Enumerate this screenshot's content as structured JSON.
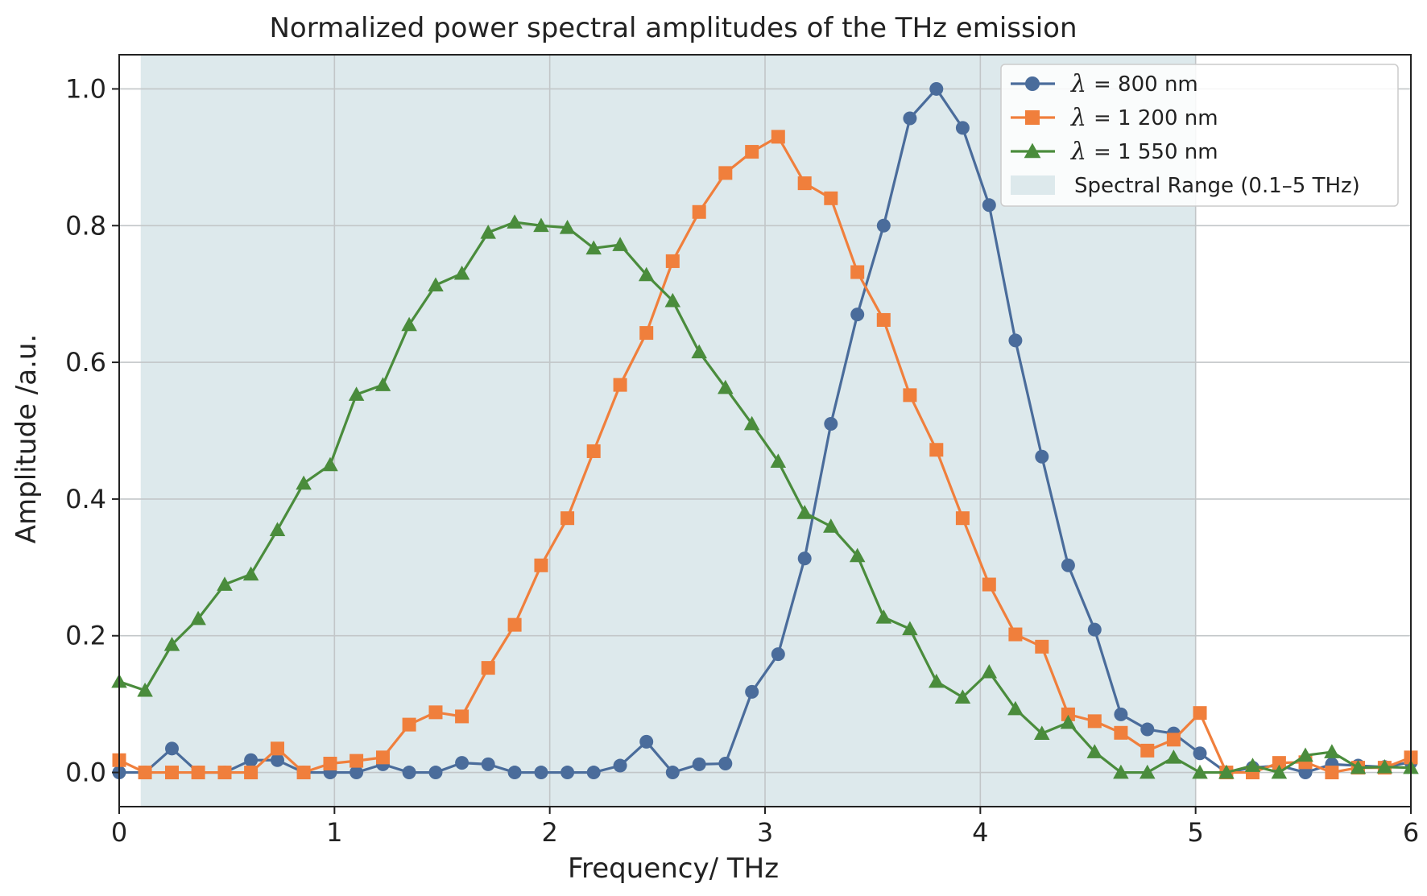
{
  "chart_data": {
    "type": "line",
    "title": "Normalized power spectral amplitudes of the THz emission",
    "xlabel": "Frequency/ THz",
    "ylabel": "Amplitude /a.u.",
    "xlim": [
      0,
      6
    ],
    "ylim": [
      -0.05,
      1.05
    ],
    "xticks": [
      0,
      1,
      2,
      3,
      4,
      5,
      6
    ],
    "yticks": [
      0.0,
      0.2,
      0.4,
      0.6,
      0.8,
      1.0
    ],
    "xtick_labels": [
      "0",
      "1",
      "2",
      "3",
      "4",
      "5",
      "6"
    ],
    "ytick_labels": [
      "0.0",
      "0.2",
      "0.4",
      "0.6",
      "0.8",
      "1.0"
    ],
    "grid": true,
    "legend_position": "top-right",
    "shaded_region": {
      "label": "Spectral Range (0.1–5 THz)",
      "x_start": 0.1,
      "x_end": 5.0,
      "color": "#dde9ec"
    },
    "x": [
      0.0,
      0.12,
      0.245,
      0.367,
      0.49,
      0.612,
      0.735,
      0.857,
      0.98,
      1.102,
      1.225,
      1.347,
      1.47,
      1.592,
      1.714,
      1.837,
      1.96,
      2.082,
      2.204,
      2.327,
      2.449,
      2.571,
      2.694,
      2.816,
      2.939,
      3.061,
      3.184,
      3.306,
      3.429,
      3.551,
      3.673,
      3.796,
      3.918,
      4.041,
      4.163,
      4.286,
      4.408,
      4.531,
      4.653,
      4.776,
      4.898,
      5.02,
      5.143,
      5.265,
      5.388,
      5.51,
      5.633,
      5.755,
      5.878,
      6.0
    ],
    "series": [
      {
        "name": "λ = 800 nm",
        "symbol": "λ",
        "label_text": "= 800 nm",
        "color": "#4a6c9b",
        "marker": "circle",
        "values": [
          0.0,
          0.0,
          0.035,
          0.0,
          0.0,
          0.018,
          0.018,
          0.0,
          0.0,
          0.0,
          0.012,
          0.0,
          0.0,
          0.014,
          0.012,
          0.0,
          0.0,
          0.0,
          0.0,
          0.01,
          0.045,
          0.0,
          0.012,
          0.013,
          0.118,
          0.173,
          0.313,
          0.51,
          0.67,
          0.8,
          0.957,
          1.0,
          0.943,
          0.83,
          0.632,
          0.462,
          0.303,
          0.209,
          0.085,
          0.063,
          0.057,
          0.028,
          0.0,
          0.007,
          0.01,
          0.0,
          0.012,
          0.01,
          0.008,
          0.015
        ]
      },
      {
        "name": "λ = 1 200 nm",
        "symbol": "λ",
        "label_text": "= 1 200 nm",
        "color": "#f07f3c",
        "marker": "square",
        "values": [
          0.018,
          0.0,
          0.0,
          0.0,
          0.0,
          0.0,
          0.035,
          0.0,
          0.013,
          0.017,
          0.022,
          0.07,
          0.088,
          0.082,
          0.153,
          0.216,
          0.303,
          0.372,
          0.47,
          0.567,
          0.643,
          0.748,
          0.82,
          0.877,
          0.908,
          0.93,
          0.862,
          0.84,
          0.732,
          0.662,
          0.552,
          0.472,
          0.372,
          0.275,
          0.202,
          0.184,
          0.085,
          0.075,
          0.058,
          0.032,
          0.048,
          0.087,
          0.0,
          0.0,
          0.014,
          0.015,
          0.0,
          0.007,
          0.007,
          0.022
        ]
      },
      {
        "name": "λ = 1 550 nm",
        "symbol": "λ",
        "label_text": "= 1 550 nm",
        "color": "#4a8c3c",
        "marker": "triangle",
        "values": [
          0.133,
          0.12,
          0.187,
          0.225,
          0.275,
          0.29,
          0.355,
          0.423,
          0.45,
          0.553,
          0.567,
          0.655,
          0.713,
          0.73,
          0.79,
          0.805,
          0.8,
          0.797,
          0.767,
          0.772,
          0.728,
          0.69,
          0.615,
          0.563,
          0.51,
          0.455,
          0.38,
          0.36,
          0.317,
          0.227,
          0.21,
          0.133,
          0.11,
          0.147,
          0.093,
          0.057,
          0.073,
          0.03,
          0.0,
          0.0,
          0.022,
          0.0,
          0.0,
          0.01,
          0.0,
          0.025,
          0.03,
          0.007,
          0.008,
          0.007
        ]
      }
    ]
  }
}
